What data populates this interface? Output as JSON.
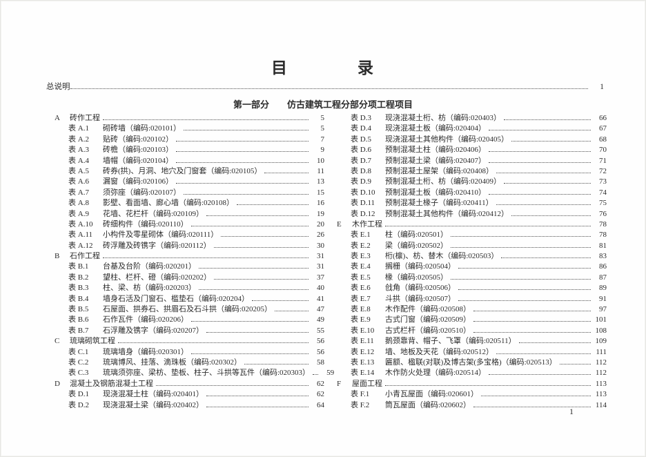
{
  "page": {
    "title": "目　　　　录",
    "intro": {
      "label": "总说明",
      "page": "1"
    },
    "part_heading": "第一部分　　仿古建筑工程分部分项工程项目",
    "page_number": "1"
  },
  "toc": {
    "left": [
      {
        "level": 0,
        "no": "A",
        "label": "砖作工程",
        "page": "5"
      },
      {
        "level": 1,
        "no": "表 A.1",
        "label": "砌砖墙（编码:020101）",
        "page": "5"
      },
      {
        "level": 1,
        "no": "表 A.2",
        "label": "贴砖（编码:020102）",
        "page": "7"
      },
      {
        "level": 1,
        "no": "表 A.3",
        "label": "砖檐（编码:020103）",
        "page": "9"
      },
      {
        "level": 1,
        "no": "表 A.4",
        "label": "墙帽（编码:020104）",
        "page": "10"
      },
      {
        "level": 1,
        "no": "表 A.5",
        "label": "砖券(拱)、月洞、地穴及门窗套（编码:020105）",
        "page": "11"
      },
      {
        "level": 1,
        "no": "表 A.6",
        "label": "漏窗（编码:020106）",
        "page": "13"
      },
      {
        "level": 1,
        "no": "表 A.7",
        "label": "须弥座（编码:020107）",
        "page": "15"
      },
      {
        "level": 1,
        "no": "表 A.8",
        "label": "影壁、看面墙、廊心墙（编码:020108）",
        "page": "16"
      },
      {
        "level": 1,
        "no": "表 A.9",
        "label": "花墙、花栏杆（编码:020109）",
        "page": "19"
      },
      {
        "level": 1,
        "no": "表 A.10",
        "label": "砖细构件（编码:020110）",
        "page": "20"
      },
      {
        "level": 1,
        "no": "表 A.11",
        "label": "小构件及零星砌体（编码:020111）",
        "page": "26"
      },
      {
        "level": 1,
        "no": "表 A.12",
        "label": "砖浮雕及砖镌字（编码:020112）",
        "page": "30"
      },
      {
        "level": 0,
        "no": "B",
        "label": "石作工程",
        "page": "31"
      },
      {
        "level": 1,
        "no": "表 B.1",
        "label": "台基及台阶（编码:020201）",
        "page": "31"
      },
      {
        "level": 1,
        "no": "表 B.2",
        "label": "望柱、栏杆、磴（编码:020202）",
        "page": "37"
      },
      {
        "level": 1,
        "no": "表 B.3",
        "label": "柱、梁、枋（编码:020203）",
        "page": "40"
      },
      {
        "level": 1,
        "no": "表 B.4",
        "label": "墙身石活及门窗石、槛垫石（编码:020204）",
        "page": "41"
      },
      {
        "level": 1,
        "no": "表 B.5",
        "label": "石屋面、拱券石、拱眉石及石斗拱（编码:020205）",
        "page": "47"
      },
      {
        "level": 1,
        "no": "表 B.6",
        "label": "石作瓦件（编码:020206）",
        "page": "49"
      },
      {
        "level": 1,
        "no": "表 B.7",
        "label": "石浮雕及镌字（编码:020207）",
        "page": "55"
      },
      {
        "level": 0,
        "no": "C",
        "label": "琉璃砌筑工程",
        "page": "56"
      },
      {
        "level": 1,
        "no": "表 C.1",
        "label": "琉璃墙身（编码:020301）",
        "page": "56"
      },
      {
        "level": 1,
        "no": "表 C.2",
        "label": "琉璃博风、挂落、滴珠板（编码:020302）",
        "page": "58"
      },
      {
        "level": 1,
        "no": "表 C.3",
        "label": "琉璃须弥座、梁枋、垫板、柱子、斗拱等瓦件（编码:020303）",
        "page": "59"
      },
      {
        "level": 0,
        "no": "D",
        "label": "混凝土及钢筋混凝土工程",
        "page": "62"
      },
      {
        "level": 1,
        "no": "表 D.1",
        "label": "现浇混凝土柱（编码:020401）",
        "page": "62"
      },
      {
        "level": 1,
        "no": "表 D.2",
        "label": "现浇混凝土梁（编码:020402）",
        "page": "64"
      }
    ],
    "right": [
      {
        "level": 1,
        "no": "表 D.3",
        "label": "现浇混凝土桁、枋（编码:020403）",
        "page": "66"
      },
      {
        "level": 1,
        "no": "表 D.4",
        "label": "现浇混凝土板（编码:020404）",
        "page": "67"
      },
      {
        "level": 1,
        "no": "表 D.5",
        "label": "现浇混凝土其他构件（编码:020405）",
        "page": "68"
      },
      {
        "level": 1,
        "no": "表 D.6",
        "label": "预制混凝土柱（编码:020406）",
        "page": "70"
      },
      {
        "level": 1,
        "no": "表 D.7",
        "label": "预制混凝土梁（编码:020407）",
        "page": "71"
      },
      {
        "level": 1,
        "no": "表 D.8",
        "label": "预制混凝土屋架（编码:020408）",
        "page": "72"
      },
      {
        "level": 1,
        "no": "表 D.9",
        "label": "预制混凝土桁、枋（编码:020409）",
        "page": "73"
      },
      {
        "level": 1,
        "no": "表 D.10",
        "label": "预制混凝土板（编码:020410）",
        "page": "74"
      },
      {
        "level": 1,
        "no": "表 D.11",
        "label": "预制混凝土椽子（编码:020411）",
        "page": "75"
      },
      {
        "level": 1,
        "no": "表 D.12",
        "label": "预制混凝土其他构件（编码:020412）",
        "page": "76"
      },
      {
        "level": 0,
        "no": "E",
        "label": "木作工程",
        "page": "78"
      },
      {
        "level": 1,
        "no": "表 E.1",
        "label": "柱（编码:020501）",
        "page": "78"
      },
      {
        "level": 1,
        "no": "表 E.2",
        "label": "梁（编码:020502）",
        "page": "81"
      },
      {
        "level": 1,
        "no": "表 E.3",
        "label": "桁(檩)、枋、替木（编码:020503）",
        "page": "83"
      },
      {
        "level": 1,
        "no": "表 E.4",
        "label": "搁栅（编码:020504）",
        "page": "86"
      },
      {
        "level": 1,
        "no": "表 E.5",
        "label": "椽（编码:020505）",
        "page": "87"
      },
      {
        "level": 1,
        "no": "表 E.6",
        "label": "戗角（编码:020506）",
        "page": "89"
      },
      {
        "level": 1,
        "no": "表 E.7",
        "label": "斗拱（编码:020507）",
        "page": "91"
      },
      {
        "level": 1,
        "no": "表 E.8",
        "label": "木作配件（编码:020508）",
        "page": "97"
      },
      {
        "level": 1,
        "no": "表 E.9",
        "label": "古式门窗（编码:020509）",
        "page": "101"
      },
      {
        "level": 1,
        "no": "表 E.10",
        "label": "古式栏杆（编码:020510）",
        "page": "108"
      },
      {
        "level": 1,
        "no": "表 E.11",
        "label": "鹅颈靠背、帽子、飞罩（编码:020511）",
        "page": "109"
      },
      {
        "level": 1,
        "no": "表 E.12",
        "label": "墙、地板及天花（编码:020512）",
        "page": "111"
      },
      {
        "level": 1,
        "no": "表 E.13",
        "label": "匾额、楹联(对联)及博古架(多宝格)（编码:020513）",
        "page": "112"
      },
      {
        "level": 1,
        "no": "表 E.14",
        "label": "木作防火处理（编码:020514）",
        "page": "112"
      },
      {
        "level": 0,
        "no": "F",
        "label": "屋面工程",
        "page": "113"
      },
      {
        "level": 1,
        "no": "表 F.1",
        "label": "小青瓦屋面（编码:020601）",
        "page": "113"
      },
      {
        "level": 1,
        "no": "表 F.2",
        "label": "筒瓦屋面（编码:020602）",
        "page": "114"
      }
    ]
  }
}
